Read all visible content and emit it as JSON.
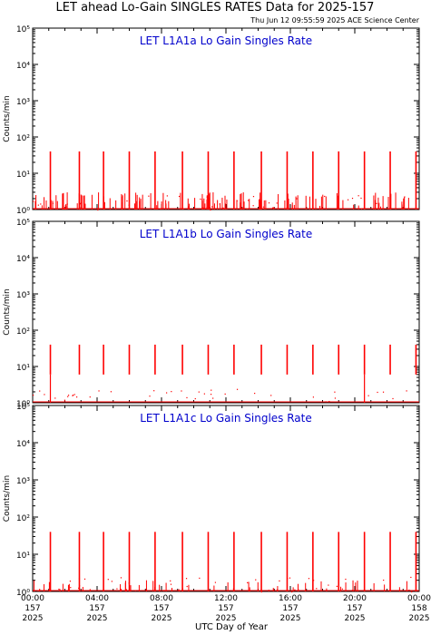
{
  "header": {
    "title": "LET ahead Lo-Gain SINGLES RATES Data for 2025-157",
    "timestamp": "Thu Jun 12 09:55:59 2025 ACE Science Center"
  },
  "colors": {
    "data": "#ff0000",
    "panel_label": "#0000cc",
    "axis": "#000000"
  },
  "chart_data": [
    {
      "type": "line",
      "title": "LET L1A1a Lo Gain Singles Rate",
      "ylabel": "Counts/min",
      "yscale": "log",
      "ylim": [
        1,
        100000
      ],
      "ytick_labels": [
        "10⁰",
        "10¹",
        "10²",
        "10³",
        "10⁴",
        "10⁵"
      ],
      "xlim": [
        0,
        24
      ],
      "spike_hours": [
        1.1,
        2.9,
        4.4,
        6.0,
        7.6,
        9.3,
        10.9,
        12.5,
        14.2,
        15.8,
        17.4,
        19.0,
        20.6,
        22.2,
        23.8
      ],
      "spike_peak": 40,
      "baseline_noise_max": 3
    },
    {
      "type": "line",
      "title": "LET L1A1b Lo Gain Singles Rate",
      "ylabel": "Counts/min",
      "yscale": "log",
      "ylim": [
        1,
        100000
      ],
      "ytick_labels": [
        "10⁰",
        "10¹",
        "10²",
        "10³",
        "10⁴",
        "10⁵"
      ],
      "xlim": [
        0,
        24
      ],
      "spike_hours": [
        1.1,
        2.9,
        4.4,
        6.0,
        7.6,
        9.3,
        10.9,
        12.5,
        14.2,
        15.8,
        17.4,
        19.0,
        20.6,
        22.2,
        23.8
      ],
      "spike_peak": 40,
      "baseline_noise_max": 1
    },
    {
      "type": "line",
      "title": "LET L1A1c Lo Gain Singles Rate",
      "ylabel": "Counts/min",
      "yscale": "log",
      "ylim": [
        1,
        100000
      ],
      "ytick_labels": [
        "10⁰",
        "10¹",
        "10²",
        "10³",
        "10⁴",
        "10⁵"
      ],
      "xlim": [
        0,
        24
      ],
      "spike_hours": [
        1.1,
        2.9,
        4.4,
        6.0,
        7.6,
        9.3,
        10.9,
        12.5,
        14.2,
        15.8,
        17.4,
        19.0,
        20.6,
        22.2,
        23.8
      ],
      "spike_peak": 40,
      "baseline_noise_max": 2
    }
  ],
  "x_axis": {
    "label": "UTC Day of Year",
    "ticks": [
      {
        "time": "00:00",
        "doy": "157",
        "year": "2025"
      },
      {
        "time": "04:00",
        "doy": "157",
        "year": "2025"
      },
      {
        "time": "08:00",
        "doy": "157",
        "year": "2025"
      },
      {
        "time": "12:00",
        "doy": "157",
        "year": "2025"
      },
      {
        "time": "16:00",
        "doy": "157",
        "year": "2025"
      },
      {
        "time": "20:00",
        "doy": "157",
        "year": "2025"
      },
      {
        "time": "00:00",
        "doy": "158",
        "year": "2025"
      }
    ]
  }
}
